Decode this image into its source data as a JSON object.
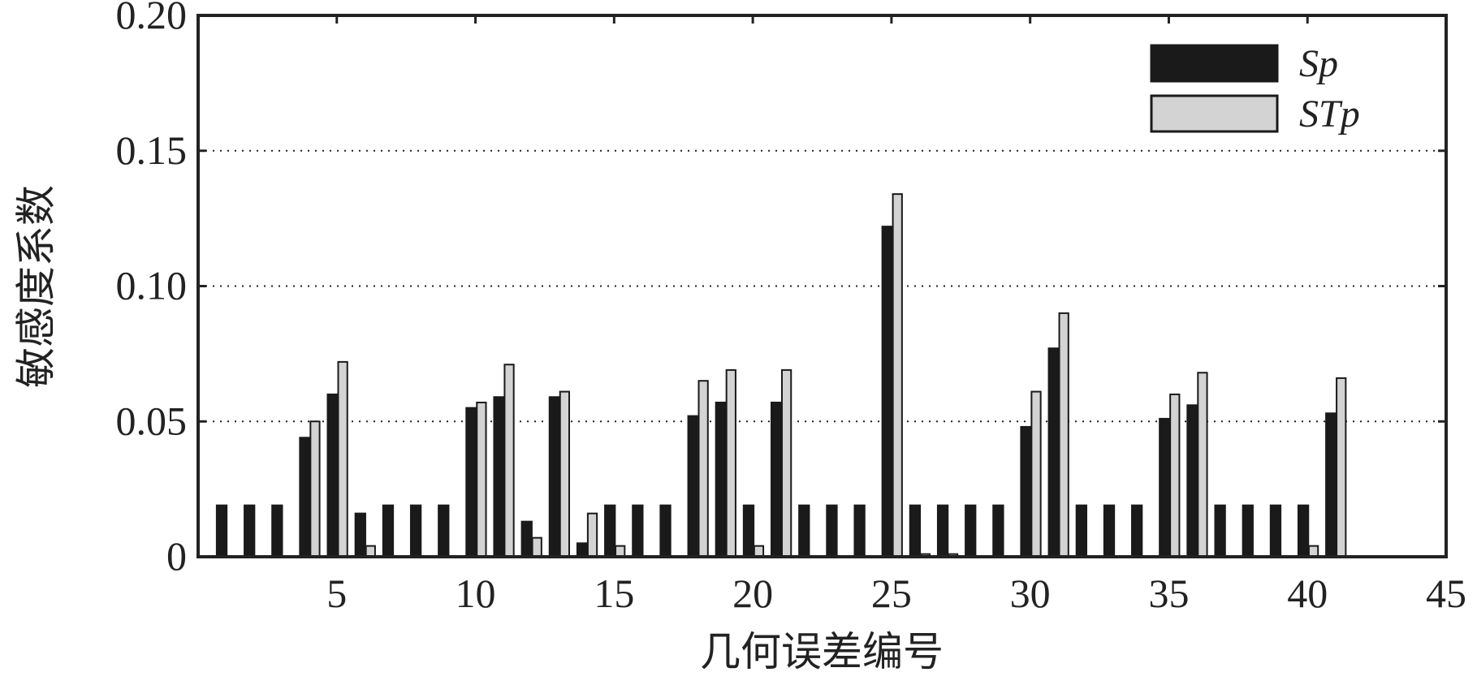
{
  "chart_data": {
    "type": "bar",
    "x_label": "几何误差编号",
    "y_label": "敏感度系数",
    "x": [
      1,
      2,
      3,
      4,
      5,
      6,
      7,
      8,
      9,
      10,
      11,
      12,
      13,
      14,
      15,
      16,
      17,
      18,
      19,
      20,
      21,
      22,
      23,
      24,
      25,
      26,
      27,
      28,
      29,
      30,
      31,
      32,
      33,
      34,
      35,
      36,
      37,
      38,
      39,
      40,
      41
    ],
    "series": [
      {
        "name": "Sp",
        "color": "#1a1a1a",
        "values": [
          0.019,
          0.019,
          0.019,
          0.044,
          0.06,
          0.016,
          0.019,
          0.019,
          0.019,
          0.055,
          0.059,
          0.013,
          0.059,
          0.005,
          0.019,
          0.019,
          0.019,
          0.052,
          0.057,
          0.019,
          0.057,
          0.019,
          0.019,
          0.019,
          0.122,
          0.019,
          0.019,
          0.019,
          0.019,
          0.048,
          0.077,
          0.019,
          0.019,
          0.019,
          0.051,
          0.056,
          0.019,
          0.019,
          0.019,
          0.019,
          0.053
        ]
      },
      {
        "name": "STp",
        "color": "#d3d3d3",
        "values": [
          0,
          0,
          0,
          0.05,
          0.072,
          0.004,
          0,
          0,
          0,
          0.057,
          0.071,
          0.007,
          0.061,
          0.016,
          0.004,
          0,
          0,
          0.065,
          0.069,
          0.004,
          0.069,
          0,
          0,
          0,
          0.134,
          0.001,
          0.001,
          0,
          0,
          0.061,
          0.09,
          0,
          0,
          0,
          0.06,
          0.068,
          0,
          0,
          0,
          0.004,
          0.066
        ]
      }
    ],
    "xlim": [
      0,
      45
    ],
    "xticks": [
      5,
      10,
      15,
      20,
      25,
      30,
      35,
      40,
      45
    ],
    "ylim": [
      0,
      0.2
    ],
    "yticks": [
      0,
      0.05,
      {
        "value": 0.1,
        "label": "0.10"
      },
      0.15,
      {
        "value": 0.2,
        "label": "0.20"
      }
    ],
    "grid": true,
    "legend": "upper right"
  }
}
